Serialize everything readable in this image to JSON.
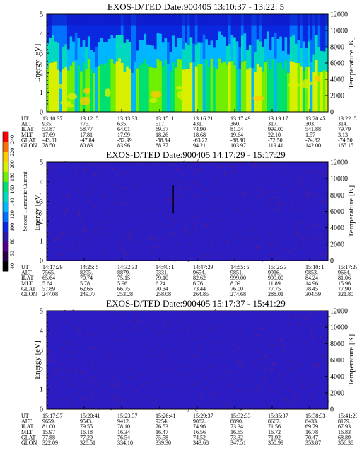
{
  "chart_data": [
    {
      "type": "heatmap",
      "title": "EXOS-D/TED   Date:900405  13:10:37 - 13:22: 5",
      "ylabel": "Energy [eV]",
      "y2label": "Temperature [K]",
      "yticks": [
        "0",
        "1",
        "2",
        "3",
        "4",
        "5"
      ],
      "y2ticks": [
        "0",
        "2000",
        "4000",
        "6000",
        "8000",
        "10000",
        "12000"
      ],
      "ylim": [
        0,
        5
      ],
      "y2lim": [
        0,
        12000
      ],
      "style": "active",
      "table": {
        "row_labels": [
          "UT",
          "ALT",
          "ILAT",
          "MLT",
          "GLAT",
          "GLON"
        ],
        "columns": [
          [
            "13:10:37",
            "935.",
            "53.87",
            "17.69",
            "-43.01",
            "78.50"
          ],
          [
            "13:12: 5",
            "775.",
            "58.77",
            "17.81",
            "-47.84",
            "80.83"
          ],
          [
            "13:13:33",
            "635.",
            "64.01",
            "17.99",
            "-52.99",
            "83.96"
          ],
          [
            "13:15: 1",
            "517.",
            "69.57",
            "18.26",
            "-58.34",
            "88.37"
          ],
          [
            "13:16:21",
            "431.",
            "74.90",
            "18.68",
            "-63.22",
            "94.21"
          ],
          [
            "13:17:49",
            "360.",
            "81.04",
            "19.64",
            "-68.30",
            "103.97"
          ],
          [
            "13:19:17",
            "317.",
            "999.00",
            "22.10",
            "-72.50",
            "119.41"
          ],
          [
            "13:20:45",
            "303.",
            "541.88",
            "1.57",
            "-74.82",
            "142.00"
          ],
          [
            "13:22: 5",
            "314.",
            "79.79",
            "3.13",
            "-74.50",
            "165.15"
          ]
        ]
      }
    },
    {
      "type": "heatmap",
      "title": "EXOS-D/TED   Date:900405  14:17:29 - 15:17:29",
      "ylabel": "Energy [eV]",
      "y2label": "Temperature [K]",
      "yticks": [
        "0",
        "1",
        "2",
        "3",
        "4",
        "5"
      ],
      "y2ticks": [
        "0",
        "2000",
        "4000",
        "6000",
        "8000",
        "10000",
        "12000"
      ],
      "ylim": [
        0,
        5
      ],
      "y2lim": [
        0,
        12000
      ],
      "style": "quiet",
      "spike": {
        "x_fraction": 0.45,
        "y_range": [
          2.4,
          3.8
        ]
      },
      "table": {
        "row_labels": [
          "UT",
          "ALT",
          "ILAT",
          "MLT",
          "GLAT",
          "GLON"
        ],
        "columns": [
          [
            "14:17:29",
            "7565.",
            "65.64",
            "5.64",
            "57.89",
            "247.08"
          ],
          [
            "14:25: 5",
            "8295.",
            "70.74",
            "5.78",
            "62.66",
            "249.77"
          ],
          [
            "14:32:33",
            "8879.",
            "75.15",
            "5.96",
            "66.75",
            "253.28"
          ],
          [
            "14:40: 1",
            "9331.",
            "79.10",
            "6.24",
            "70.34",
            "258.08"
          ],
          [
            "14:47:29",
            "9654.",
            "82.62",
            "6.76",
            "73.44",
            "264.85"
          ],
          [
            "14:55: 5",
            "9851.",
            "999.00",
            "8.09",
            "76.00",
            "274.68"
          ],
          [
            "15: 2:33",
            "9916.",
            "999.00",
            "11.89",
            "77.75",
            "288.01"
          ],
          [
            "15:10: 1",
            "9853.",
            "84.24",
            "14.96",
            "78.45",
            "304.59"
          ],
          [
            "15:17:29",
            "9664.",
            "81.06",
            "15.96",
            "77.90",
            "321.80"
          ]
        ]
      },
      "colorbar": {
        "label": "Second Harmonic Current",
        "ticks": [
          "40",
          "60",
          "80",
          "100",
          "120",
          "140",
          "160",
          "180",
          "200",
          "220",
          "240"
        ]
      }
    },
    {
      "type": "heatmap",
      "title": "EXOS-D/TED   Date:900405  15:17:37 - 15:41:29",
      "ylabel": "Energy [eV]",
      "y2label": "Temperature [K]",
      "yticks": [
        "0",
        "1",
        "2",
        "3",
        "4",
        "5"
      ],
      "y2ticks": [
        "0",
        "2000",
        "4000",
        "6000",
        "8000",
        "10000",
        "12000"
      ],
      "ylim": [
        0,
        5
      ],
      "y2lim": [
        0,
        12000
      ],
      "style": "quiet",
      "table": {
        "row_labels": [
          "UT",
          "ALT",
          "ILAT",
          "MLT",
          "GLAT",
          "GLON"
        ],
        "columns": [
          [
            "15:17:37",
            "9659.",
            "81.00",
            "15.97",
            "77.88",
            "322.09"
          ],
          [
            "15:20:41",
            "9543.",
            "79.55",
            "16.18",
            "77.29",
            "328.51"
          ],
          [
            "15:23:37",
            "9412.",
            "78.10",
            "16.34",
            "76.54",
            "334.10"
          ],
          [
            "15:26:41",
            "9254.",
            "76.53",
            "16.47",
            "75.58",
            "339.30"
          ],
          [
            "15:29:37",
            "9082.",
            "74.96",
            "16.56",
            "74.52",
            "343.68"
          ],
          [
            "15:32:33",
            "8890.",
            "73.34",
            "16.65",
            "73.32",
            "347.51"
          ],
          [
            "15:35:37",
            "8667.",
            "71.56",
            "16.72",
            "71.92",
            "350.99"
          ],
          [
            "15:38:33",
            "8433.",
            "69.79",
            "16.78",
            "70.47",
            "353.87"
          ],
          [
            "15:41:29",
            "8179.",
            "67.93",
            "16.83",
            "68.89",
            "356.38"
          ]
        ]
      }
    }
  ],
  "colors": {
    "bar": [
      "#000000",
      "#2a0048",
      "#55008c",
      "#2b1aa8",
      "#0a28e0",
      "#0070ff",
      "#00b6ff",
      "#00d8c0",
      "#00e070",
      "#70f000",
      "#d8f000",
      "#ffc800",
      "#ff7000",
      "#ff0000"
    ],
    "quiet_bg": "#2b1cc4",
    "quiet_line": "#6a1f7a"
  }
}
